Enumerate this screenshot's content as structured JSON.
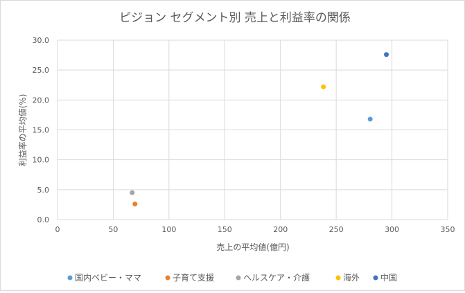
{
  "chart_data": {
    "type": "scatter",
    "title": "ピジョン セグメント別 売上と利益率の関係",
    "xlabel": "売上の平均値(億円)",
    "ylabel": "利益率の平均値(%)",
    "xlim": [
      0,
      350
    ],
    "ylim": [
      0,
      30
    ],
    "xticks": [
      "0",
      "50",
      "100",
      "150",
      "200",
      "250",
      "300",
      "350"
    ],
    "yticks": [
      "0.0",
      "5.0",
      "10.0",
      "15.0",
      "20.0",
      "25.0",
      "30.0"
    ],
    "grid": true,
    "legend": "bottom",
    "series": [
      {
        "name": "国内ベビー・ママ",
        "color": "#5b9bd5",
        "x": [
          280.5
        ],
        "y": [
          16.8
        ]
      },
      {
        "name": "子育て支援",
        "color": "#ed7d31",
        "x": [
          69.5
        ],
        "y": [
          2.6
        ]
      },
      {
        "name": "ヘルスケア・介護",
        "color": "#a5a5a5",
        "x": [
          67
        ],
        "y": [
          4.5
        ]
      },
      {
        "name": "海外",
        "color": "#ffc000",
        "x": [
          238.5
        ],
        "y": [
          22.2
        ]
      },
      {
        "name": "中国",
        "color": "#4472c4",
        "x": [
          295
        ],
        "y": [
          27.6
        ]
      }
    ]
  }
}
